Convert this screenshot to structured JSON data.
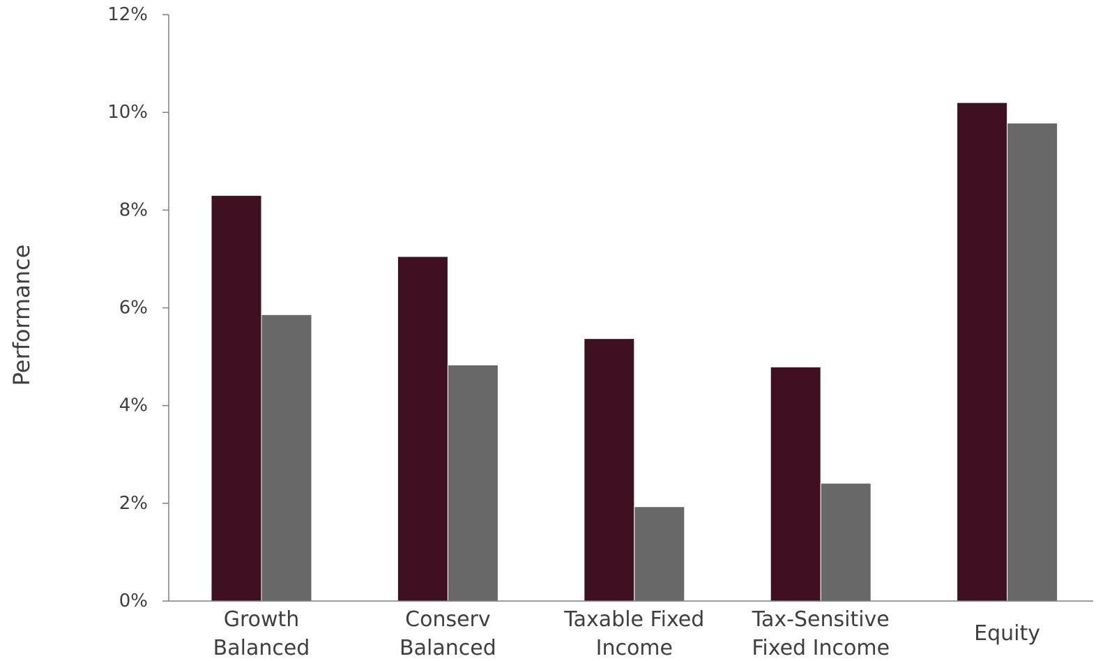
{
  "chart_data": {
    "type": "bar",
    "title": "",
    "ylabel": "Performance",
    "xlabel": "",
    "ylim": [
      0,
      12
    ],
    "yticks": [
      0,
      2,
      4,
      6,
      8,
      10,
      12
    ],
    "ytick_labels": [
      "0%",
      "2%",
      "4%",
      "6%",
      "8%",
      "10%",
      "12%"
    ],
    "grid": false,
    "legend": "none",
    "categories": [
      [
        "Growth",
        "Balanced"
      ],
      [
        "Conserv",
        "Balanced"
      ],
      [
        "Taxable Fixed",
        "Income"
      ],
      [
        "Tax-Sensitive",
        "Fixed Income"
      ],
      [
        "Equity"
      ]
    ],
    "series": [
      {
        "color": "#3e1022",
        "values": [
          8.3,
          7.05,
          5.37,
          4.79,
          10.2
        ]
      },
      {
        "color": "#676867",
        "values": [
          5.86,
          4.83,
          1.93,
          2.41,
          9.78
        ]
      }
    ]
  }
}
